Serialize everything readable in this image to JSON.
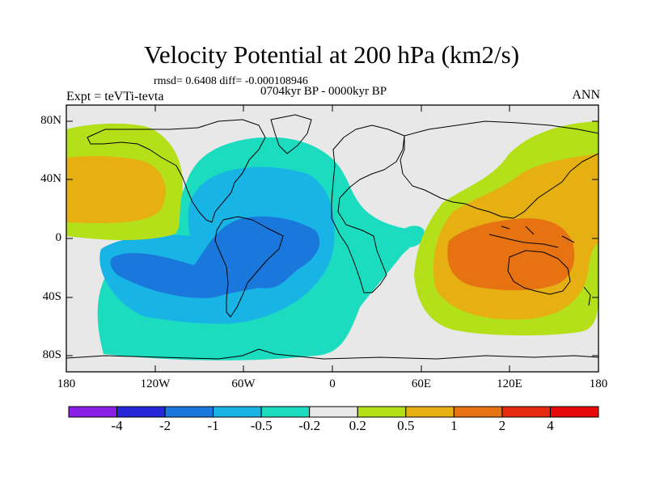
{
  "title": "Velocity Potential at 200 hPa (km2/s)",
  "stats": "rmsd= 0.6408 diff= -0.000108946",
  "experiment": "Expt = teVTi-tevta",
  "period": "0704kyr BP - 0000kyr BP",
  "season": "ANN",
  "axes": {
    "y_ticks": [
      "80N",
      "40N",
      "0",
      "40S",
      "80S"
    ],
    "x_ticks": [
      "180",
      "120W",
      "60W",
      "0",
      "60E",
      "120E",
      "180"
    ]
  },
  "colorbar": {
    "labels": [
      "-4",
      "-2",
      "-1",
      "-0.5",
      "-0.2",
      "0.2",
      "0.5",
      "1",
      "2",
      "4"
    ],
    "colors": [
      "#8a1ee6",
      "#2426d8",
      "#1a78dc",
      "#18b4e6",
      "#1cdcc0",
      "#e8e8e8",
      "#b4e01a",
      "#e6b012",
      "#e67212",
      "#e62a12",
      "#e60a0a"
    ]
  },
  "map_regions": {
    "background": "#e8e8e8",
    "coast_color": "#000000"
  }
}
